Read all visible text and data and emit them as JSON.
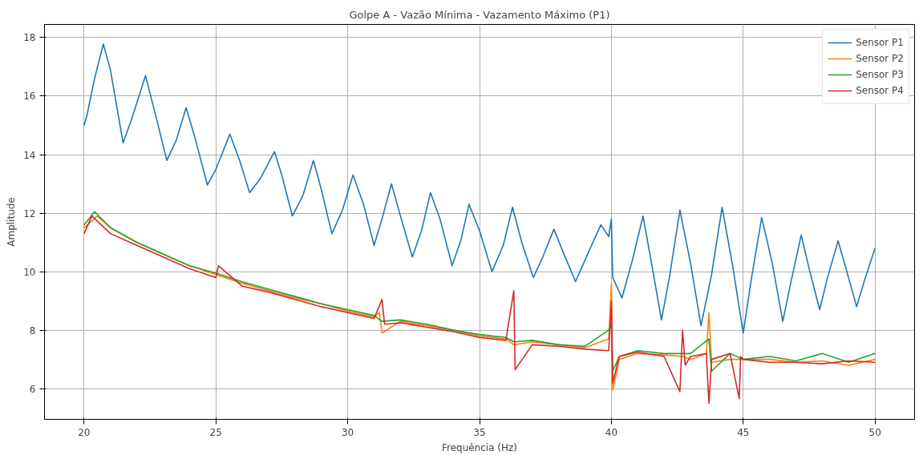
{
  "chart_data": {
    "type": "line",
    "title": "Golpe A - Vazão Mínima - Vazamento Máximo (P1)",
    "xlabel": "Frequência (Hz)",
    "ylabel": "Amplitude",
    "xlim": [
      18.5,
      51.5
    ],
    "ylim": [
      4.95,
      18.45
    ],
    "xticks": [
      20,
      25,
      30,
      35,
      40,
      45,
      50
    ],
    "yticks": [
      6,
      8,
      10,
      12,
      14,
      16,
      18
    ],
    "grid": true,
    "legend": "top right",
    "marker": "none",
    "line_style": "solid",
    "series": [
      {
        "name": "Sensor P1",
        "color": "#1f77b4",
        "x": [
          20.0,
          20.1,
          20.4,
          20.73,
          21.0,
          21.48,
          21.8,
          22.33,
          22.7,
          23.14,
          23.5,
          23.87,
          24.2,
          24.68,
          25.0,
          25.53,
          25.9,
          26.28,
          26.7,
          27.22,
          27.5,
          27.9,
          28.3,
          28.7,
          29.0,
          29.4,
          29.8,
          30.2,
          30.6,
          31.0,
          31.3,
          31.66,
          32.0,
          32.45,
          32.8,
          33.14,
          33.5,
          33.96,
          34.3,
          34.6,
          35.0,
          35.47,
          35.9,
          36.25,
          36.6,
          37.04,
          37.4,
          37.82,
          38.2,
          38.64,
          39.1,
          39.6,
          39.9,
          40.0,
          40.05,
          40.4,
          40.8,
          41.2,
          41.5,
          41.9,
          42.2,
          42.6,
          43.0,
          43.4,
          43.8,
          44.2,
          44.6,
          45.0,
          45.3,
          45.7,
          46.1,
          46.5,
          46.8,
          47.2,
          47.5,
          47.9,
          48.2,
          48.6,
          48.9,
          49.3,
          49.6,
          50.0
        ],
        "values": [
          15.0,
          15.3,
          16.6,
          17.78,
          16.9,
          14.4,
          15.2,
          16.7,
          15.4,
          13.8,
          14.5,
          15.6,
          14.6,
          12.96,
          13.5,
          14.7,
          13.8,
          12.7,
          13.2,
          14.1,
          13.3,
          11.9,
          12.6,
          13.8,
          12.8,
          11.3,
          12.1,
          13.3,
          12.3,
          10.9,
          11.8,
          13.0,
          11.9,
          10.5,
          11.4,
          12.7,
          11.8,
          10.2,
          11.1,
          12.3,
          11.4,
          10.0,
          10.9,
          12.2,
          11.0,
          9.8,
          10.5,
          11.45,
          10.6,
          9.66,
          10.6,
          11.6,
          11.2,
          11.8,
          9.8,
          9.1,
          10.4,
          11.9,
          10.4,
          8.35,
          9.8,
          12.1,
          10.3,
          8.15,
          9.9,
          12.2,
          10.2,
          7.9,
          9.7,
          11.85,
          10.3,
          8.3,
          9.6,
          11.25,
          10.1,
          8.7,
          9.8,
          11.05,
          10.1,
          8.8,
          9.7,
          10.8
        ]
      },
      {
        "name": "Sensor P2",
        "color": "#ff7f0e",
        "x": [
          20.0,
          20.5,
          21.0,
          22.0,
          23.0,
          24.0,
          25.0,
          26.0,
          27.0,
          28.0,
          29.0,
          30.0,
          31.0,
          31.2,
          31.3,
          32.0,
          33.0,
          34.0,
          35.0,
          36.0,
          36.3,
          37.0,
          38.0,
          39.0,
          39.9,
          40.0,
          40.05,
          40.3,
          41.0,
          42.0,
          42.7,
          43.0,
          43.6,
          43.7,
          43.8,
          44.5,
          45.0,
          46.0,
          47.0,
          48.0,
          49.0,
          50.0
        ],
        "values": [
          11.5,
          11.9,
          11.5,
          11.0,
          10.6,
          10.2,
          9.9,
          9.6,
          9.35,
          9.1,
          8.9,
          8.65,
          8.45,
          8.6,
          7.9,
          8.3,
          8.15,
          8.0,
          7.8,
          7.7,
          7.5,
          7.6,
          7.5,
          7.4,
          7.7,
          9.6,
          5.95,
          7.0,
          7.2,
          7.15,
          7.1,
          7.0,
          7.2,
          8.6,
          6.9,
          7.0,
          7.0,
          7.0,
          6.9,
          6.95,
          6.8,
          7.0
        ]
      },
      {
        "name": "Sensor P3",
        "color": "#2ca02c",
        "x": [
          20.0,
          20.4,
          21.0,
          22.0,
          23.0,
          24.0,
          25.0,
          26.0,
          27.0,
          28.0,
          29.0,
          30.0,
          31.0,
          31.3,
          32.0,
          33.0,
          34.0,
          35.0,
          36.0,
          36.3,
          37.0,
          38.0,
          39.0,
          39.9,
          40.0,
          40.05,
          40.3,
          41.0,
          42.0,
          43.0,
          43.7,
          43.8,
          44.5,
          45.0,
          46.0,
          47.0,
          48.0,
          49.0,
          50.0
        ],
        "values": [
          11.6,
          12.05,
          11.5,
          11.0,
          10.6,
          10.2,
          9.95,
          9.65,
          9.4,
          9.15,
          8.9,
          8.7,
          8.5,
          8.3,
          8.35,
          8.2,
          8.0,
          7.85,
          7.75,
          7.6,
          7.65,
          7.5,
          7.45,
          8.0,
          8.2,
          6.6,
          7.1,
          7.3,
          7.2,
          7.2,
          7.7,
          6.6,
          7.2,
          7.0,
          7.1,
          6.95,
          7.2,
          6.9,
          7.2
        ]
      },
      {
        "name": "Sensor P4",
        "color": "#d62728",
        "x": [
          20.0,
          20.3,
          21.0,
          22.0,
          23.0,
          24.0,
          25.0,
          25.1,
          26.0,
          27.0,
          28.0,
          29.0,
          30.0,
          31.0,
          31.3,
          31.4,
          32.0,
          33.0,
          34.0,
          35.0,
          36.0,
          36.3,
          36.35,
          37.0,
          38.0,
          39.0,
          39.9,
          40.0,
          40.05,
          40.3,
          41.0,
          42.0,
          42.6,
          42.7,
          42.8,
          43.0,
          43.6,
          43.7,
          43.8,
          44.5,
          44.85,
          44.9,
          45.0,
          46.0,
          47.0,
          48.0,
          49.0,
          50.0
        ],
        "values": [
          11.3,
          11.9,
          11.3,
          10.9,
          10.5,
          10.1,
          9.8,
          10.2,
          9.5,
          9.3,
          9.05,
          8.8,
          8.6,
          8.4,
          9.05,
          8.2,
          8.25,
          8.1,
          7.95,
          7.75,
          7.65,
          9.35,
          6.65,
          7.5,
          7.45,
          7.35,
          7.3,
          9.0,
          6.2,
          7.1,
          7.25,
          7.1,
          5.9,
          8.0,
          6.8,
          7.1,
          7.2,
          5.5,
          7.0,
          7.2,
          5.65,
          7.1,
          7.0,
          6.9,
          6.9,
          6.85,
          6.95,
          6.9
        ]
      }
    ]
  }
}
